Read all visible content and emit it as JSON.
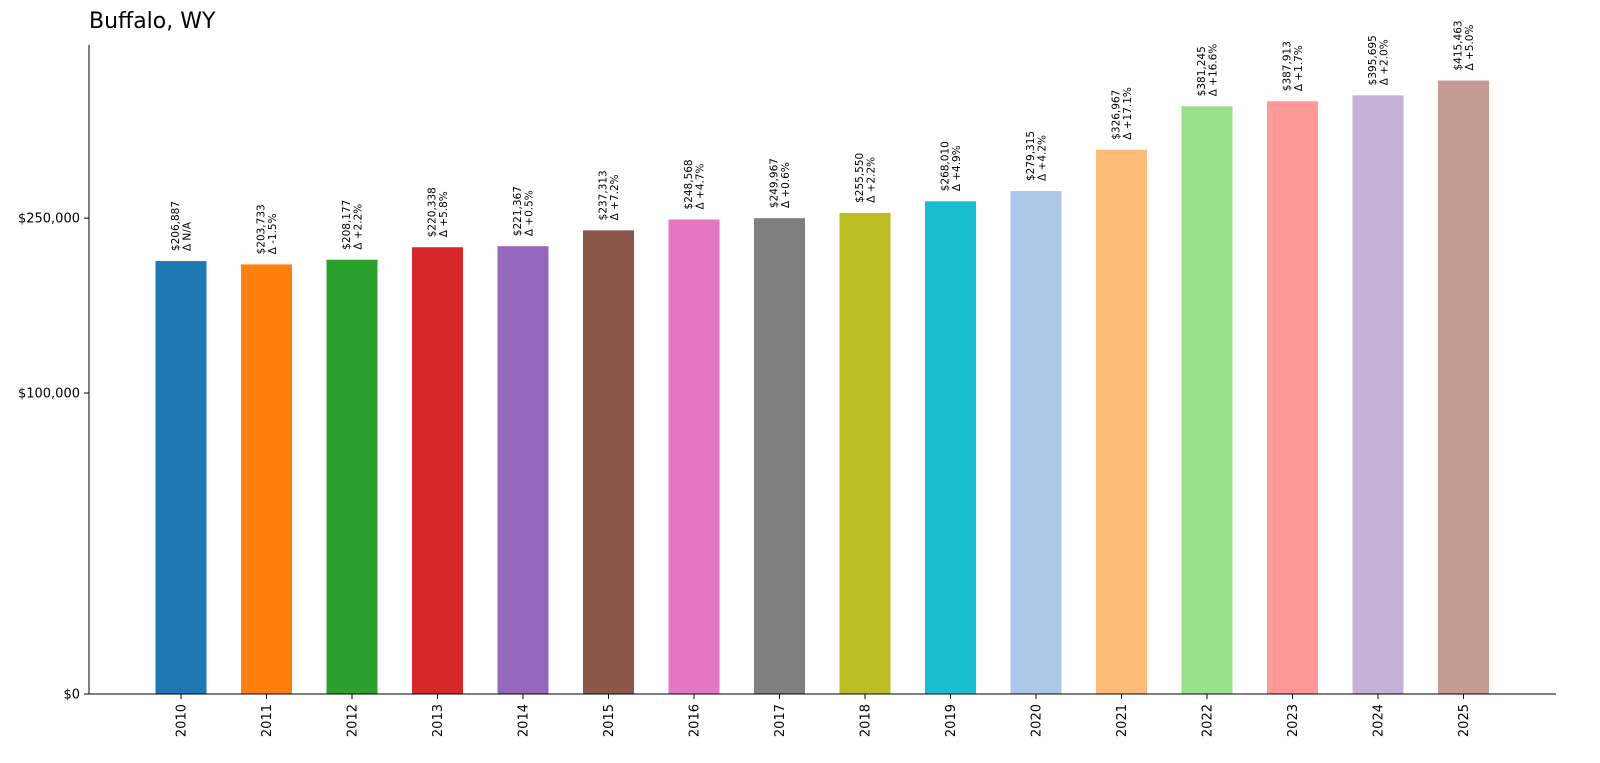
{
  "chart_data": {
    "type": "bar",
    "title": "Buffalo, WY",
    "xlabel": "",
    "ylabel": "",
    "categories": [
      "2010",
      "2011",
      "2012",
      "2013",
      "2014",
      "2015",
      "2016",
      "2017",
      "2018",
      "2019",
      "2020",
      "2021",
      "2022",
      "2023",
      "2024",
      "2025"
    ],
    "values": [
      206887,
      203733,
      208177,
      220338,
      221367,
      237313,
      248568,
      249967,
      255550,
      268010,
      279315,
      326967,
      381245,
      387913,
      395695,
      415463
    ],
    "value_labels": [
      "$206,887",
      "$203,733",
      "$208,177",
      "$220,338",
      "$221,367",
      "$237,313",
      "$248,568",
      "$249,967",
      "$255,550",
      "$268,010",
      "$279,315",
      "$326,967",
      "$381,245",
      "$387,913",
      "$395,695",
      "$415,463"
    ],
    "change_labels": [
      "Δ N/A",
      "Δ -1.5%",
      "Δ +2.2%",
      "Δ +5.8%",
      "Δ +0.5%",
      "Δ +7.2%",
      "Δ +4.7%",
      "Δ +0.6%",
      "Δ +2.2%",
      "Δ +4.9%",
      "Δ +4.2%",
      "Δ +17.1%",
      "Δ +16.6%",
      "Δ +1.7%",
      "Δ +2.0%",
      "Δ +5.0%"
    ],
    "colors": [
      "#1f77b4",
      "#ff7f0e",
      "#2ca02c",
      "#d62728",
      "#9467bd",
      "#8c564b",
      "#e377c2",
      "#7f7f7f",
      "#bcbd22",
      "#17becf",
      "#aec7e8",
      "#ffbb78",
      "#98df8a",
      "#ff9896",
      "#c5b0d5",
      "#c49c94"
    ],
    "yticks": [
      0,
      100000,
      250000
    ],
    "ytick_labels": [
      "$0",
      "$100,000",
      "$250,000"
    ],
    "y_scale": "sqrt",
    "ylim": [
      0,
      465000
    ],
    "grid": false,
    "legend": "none"
  }
}
